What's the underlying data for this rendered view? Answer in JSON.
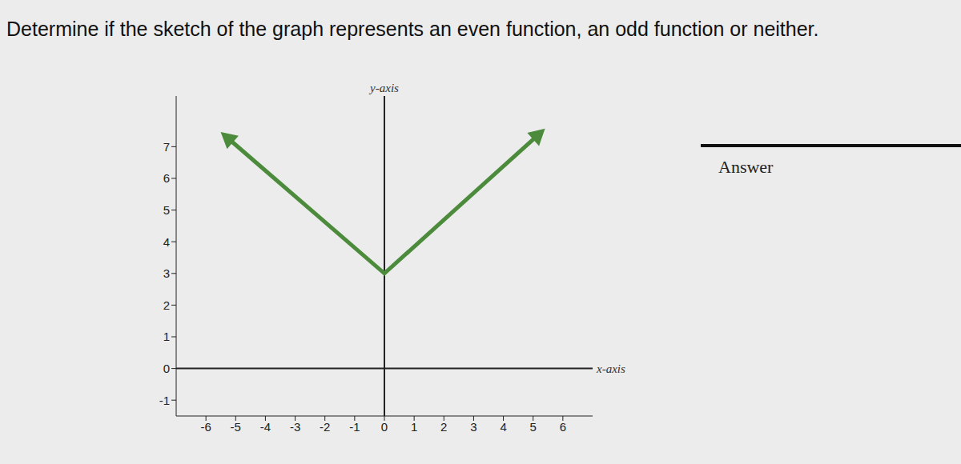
{
  "chart_data": {
    "type": "line",
    "title": "Determine if the sketch of the graph represents an even function, an odd function or neither.",
    "x_label": "x-axis",
    "y_label": "y-axis",
    "x": [
      -5.3,
      0,
      5.2
    ],
    "values": [
      7.3,
      3,
      7.4
    ],
    "color": "#4b8b3b",
    "marker": "arrow",
    "xlim": [
      -7,
      7
    ],
    "ylim": [
      -1.5,
      8.6
    ],
    "xticks": [
      -6,
      -5,
      -4,
      -3,
      -2,
      -1,
      0,
      1,
      2,
      3,
      4,
      5,
      6
    ],
    "yticks": [
      -1,
      0,
      1,
      2,
      3,
      4,
      5,
      6,
      7
    ],
    "grid": false,
    "annotations": [
      "Answer"
    ]
  }
}
